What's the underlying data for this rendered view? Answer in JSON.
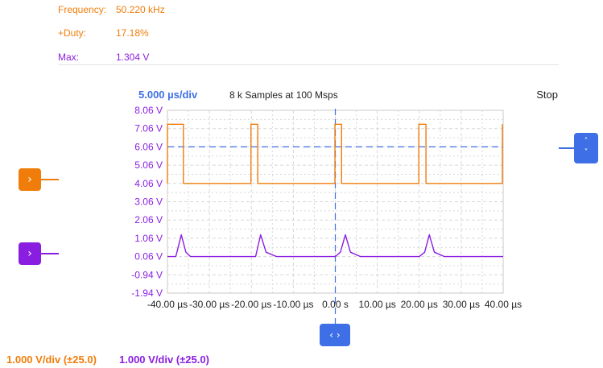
{
  "colors": {
    "ch1": "#f07d0a",
    "ch2": "#8a1ee0",
    "accent": "#3e6fe6",
    "grid": "#d8d8d8"
  },
  "measurements": {
    "frequency": {
      "label": "Frequency:",
      "value": "50.220 kHz"
    },
    "duty": {
      "label": "+Duty:",
      "value": "17.18%"
    },
    "max": {
      "label": "Max:",
      "value": "1.304 V"
    }
  },
  "status": {
    "timebase": "5.000 µs/div",
    "samples": "8 k Samples at 100 Msps",
    "run_state": "Stop"
  },
  "buttons": {
    "ch1_icon": "chevron-right",
    "ch2_icon": "chevron-right",
    "trigger_up": "˄",
    "trigger_down": "˅",
    "position": "‹ ›",
    "ch1_glyph": "›",
    "ch2_glyph": "›"
  },
  "channel_scales": {
    "ch1": "1.000 V/div (±25.0)",
    "ch2": "1.000 V/div (±25.0)"
  },
  "chart_data": {
    "type": "line",
    "title": "",
    "xlabel": "",
    "ylabel": "",
    "xlim": [
      -40,
      40
    ],
    "ylim": [
      -1.94,
      8.06
    ],
    "y_ticks": [
      "8.06 V",
      "7.06 V",
      "6.06 V",
      "5.06 V",
      "4.06 V",
      "3.06 V",
      "2.06 V",
      "1.06 V",
      "0.06 V",
      "-0.94 V",
      "-1.94 V"
    ],
    "y_tick_values": [
      8.06,
      7.06,
      6.06,
      5.06,
      4.06,
      3.06,
      2.06,
      1.06,
      0.06,
      -0.94,
      -1.94
    ],
    "x_ticks": [
      "-40.00 µs",
      "-30.00 µs",
      "-20.00 µs",
      "-10.00 µs",
      "0.00 s",
      "10.00 µs",
      "20.00 µs",
      "30.00 µs",
      "40.00 µs"
    ],
    "x_tick_values": [
      -40,
      -30,
      -20,
      -10,
      0,
      10,
      20,
      30,
      40
    ],
    "grid": true,
    "trigger_level": 6.06,
    "trigger_time": 0,
    "series": [
      {
        "color": "#f07d0a",
        "x": [
          -40,
          -40,
          -37.7,
          -37.7,
          -36.2,
          -36.2,
          -20.1,
          -20.1,
          -18.5,
          -18.5,
          -0.1,
          -0.1,
          1.5,
          1.5,
          19.9,
          19.9,
          21.6,
          21.6,
          39.8,
          39.8
        ],
        "y": [
          4.06,
          7.3,
          7.3,
          7.3,
          7.3,
          4.06,
          4.06,
          7.3,
          7.3,
          4.06,
          4.06,
          7.3,
          7.3,
          4.06,
          4.06,
          7.3,
          7.3,
          4.06,
          4.06,
          7.3
        ]
      },
      {
        "color": "#8a1ee0",
        "x": [
          -40,
          -38,
          -36.7,
          -35.6,
          -34.5,
          -32,
          -20.2,
          -19,
          -17.8,
          -16.5,
          -14,
          0,
          1.2,
          2.4,
          3.6,
          6,
          20,
          21.3,
          22.4,
          23.6,
          26,
          40
        ],
        "y": [
          0.06,
          0.06,
          1.25,
          0.3,
          0.06,
          0.06,
          0.06,
          0.06,
          1.25,
          0.3,
          0.06,
          0.06,
          0.3,
          1.25,
          0.3,
          0.06,
          0.06,
          0.3,
          1.25,
          0.3,
          0.06,
          0.06
        ]
      }
    ]
  }
}
